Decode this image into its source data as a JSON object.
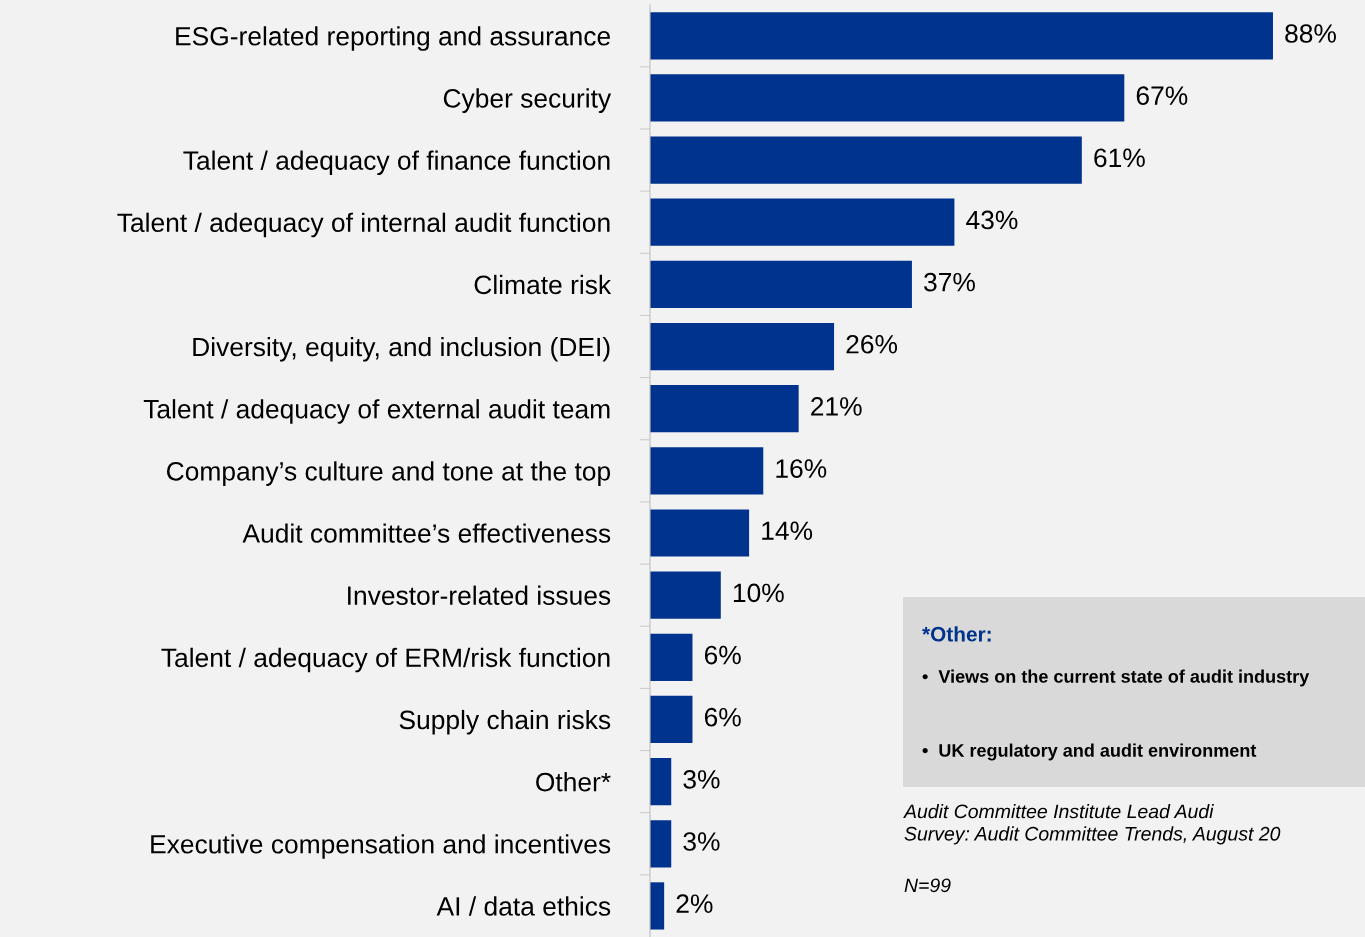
{
  "chart_data": {
    "type": "bar",
    "orientation": "horizontal",
    "categories": [
      "ESG-related reporting and assurance",
      "Cyber security",
      "Talent / adequacy of finance function",
      "Talent / adequacy of internal audit function",
      "Climate risk",
      "Diversity, equity, and inclusion (DEI)",
      "Talent / adequacy of external audit team",
      "Company’s culture and tone at the top",
      "Audit committee’s effectiveness",
      "Investor-related issues",
      "Talent / adequacy of ERM/risk function",
      "Supply chain risks",
      "Other*",
      "Executive compensation and incentives",
      "AI / data ethics"
    ],
    "values": [
      88,
      67,
      61,
      43,
      37,
      26,
      21,
      16,
      14,
      10,
      6,
      6,
      3,
      3,
      2
    ],
    "value_labels": [
      "88%",
      "67%",
      "61%",
      "43%",
      "37%",
      "26%",
      "21%",
      "16%",
      "14%",
      "10%",
      "6%",
      "6%",
      "3%",
      "3%",
      "2%"
    ],
    "color": "#00338d",
    "xlim": [
      0,
      101
    ],
    "tick_labels": "y",
    "grid": false,
    "legend": false,
    "annotations": [
      "*Other:",
      "•  Views on the current state of audit industry",
      "•  UK regulatory and audit environment",
      "Audit Committee Institute Lead Audi\nSurvey: Audit Committee Trends, August 20",
      "N=99"
    ]
  }
}
